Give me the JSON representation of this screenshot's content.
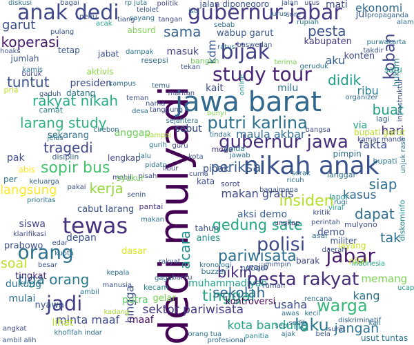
{
  "words": [
    {
      "text": "dedi mulyadi",
      "color": "#440154"
    },
    {
      "text": "jawa barat",
      "color": "#31688e"
    },
    {
      "text": "nikah anak",
      "color": "#3a528b"
    },
    {
      "text": "gubernur jabar",
      "color": "#443983"
    },
    {
      "text": "tewas",
      "color": "#46327e"
    },
    {
      "text": "anak dedi",
      "color": "#3f4889"
    },
    {
      "text": "bijak",
      "color": "#424086"
    },
    {
      "text": "study tour",
      "color": "#482475"
    },
    {
      "text": "orang",
      "color": "#2c718e"
    },
    {
      "text": "jabar",
      "color": "#481a6c"
    },
    {
      "text": "polisi",
      "color": "#3e4a89"
    },
    {
      "text": "pesta rakyat",
      "color": "#472c7a"
    },
    {
      "text": "gubernur jawa",
      "color": "#472f7d"
    },
    {
      "text": "putri karlina",
      "color": "#2c728e"
    },
    {
      "text": "jadi",
      "color": "#424186"
    },
    {
      "text": "warga",
      "color": "#35b779"
    },
    {
      "text": "laku",
      "color": "#2a788e"
    },
    {
      "text": "gedung sate",
      "color": "#22a884"
    },
    {
      "text": "koban",
      "color": "#404387"
    },
    {
      "text": "pariwisata",
      "color": "#2d708e"
    },
    {
      "text": "sopir bus",
      "color": "#46c06f"
    },
    {
      "text": "insiden",
      "color": "#b4de2c"
    },
    {
      "text": "tinggal",
      "color": "#24aa83"
    },
    {
      "text": "bikin",
      "color": "#472d7b"
    },
    {
      "text": "tragedi",
      "color": "#3f4788"
    },
    {
      "text": "periksa",
      "color": "#375b8d"
    },
    {
      "text": "kerja",
      "color": "#95d840"
    },
    {
      "text": "pesta",
      "color": "#3b528b"
    },
    {
      "text": "sama",
      "color": "#34608d"
    },
    {
      "text": "didik",
      "color": "#1f9e89"
    },
    {
      "text": "tuntut",
      "color": "#3b528b"
    },
    {
      "text": "koperasi",
      "color": "#48186a"
    },
    {
      "text": "dapat",
      "color": "#2e6f8e"
    },
    {
      "text": "siap",
      "color": "#2d718e"
    },
    {
      "text": "buat",
      "color": "#20a386"
    },
    {
      "text": "sekolah",
      "color": "#32658e"
    },
    {
      "text": "tiga orang",
      "color": "#2a788e"
    },
    {
      "text": "acara",
      "color": "#20928c"
    },
    {
      "text": "larang study",
      "color": "#2db27d"
    },
    {
      "text": "rakyat nikah",
      "color": "#25ac82"
    },
    {
      "text": "usaha",
      "color": "#3b518b"
    },
    {
      "text": "kota bandung",
      "color": "#21a585"
    },
    {
      "text": "sektor pariwisata",
      "color": "#443b84"
    },
    {
      "text": "makan gratis",
      "color": "#3e4989"
    },
    {
      "text": "minta maaf",
      "color": "#3e4c8a"
    },
    {
      "text": "garut",
      "color": "#3c4f8a"
    },
    {
      "text": "ekonomi",
      "color": "#2f6b8e"
    },
    {
      "text": "kasus",
      "color": "#31678e"
    },
    {
      "text": "langsung",
      "color": "#fde725"
    },
    {
      "text": "jangan",
      "color": "#2c738e"
    },
    {
      "text": "soal",
      "color": "#bddf26"
    },
    {
      "text": "tak",
      "color": "#2e6e8e"
    },
    {
      "text": "kdm",
      "color": "#375a8c"
    },
    {
      "text": "fakta",
      "color": "#3c508b"
    },
    {
      "text": "ribu",
      "color": "#26818e"
    },
    {
      "text": "aku",
      "color": "#355f8d"
    },
    {
      "text": "hari",
      "color": "#472d7b"
    },
    {
      "text": "masuk",
      "color": "#414287"
    },
    {
      "text": "jalan diponegoro",
      "color": "#3b518b"
    },
    {
      "text": "sebut",
      "color": "#3e4c8a"
    },
    {
      "text": "kang",
      "color": "#2d708e"
    },
    {
      "text": "memang",
      "color": "#7ad151"
    },
    {
      "text": "demo",
      "color": "#3c4f8a"
    },
    {
      "text": "muhammadiyah",
      "color": "#1f9e89"
    },
    {
      "text": "aksi demo",
      "color": "#365c8d"
    },
    {
      "text": "kontroversi",
      "color": "#440154"
    },
    {
      "text": "anies",
      "color": "#21918c"
    },
    {
      "text": "sebut",
      "color": "#3b528b"
    },
    {
      "text": "tingkat",
      "color": "#472c7a"
    },
    {
      "text": "siswa",
      "color": "#414487"
    },
    {
      "text": "maula akbar",
      "color": "#2f6c8e"
    },
    {
      "text": "pihak",
      "color": "#3b528b"
    },
    {
      "text": "anggap",
      "color": "#6ece58"
    },
    {
      "text": "kabupaten",
      "color": "#443a83"
    },
    {
      "text": "cabut larang",
      "color": "#3a538b"
    },
    {
      "text": "wabup garut",
      "color": "#38598c"
    },
    {
      "text": "dukung",
      "color": "#2c738e"
    },
    {
      "text": "presiden",
      "color": "#3f4889"
    },
    {
      "text": "hingga",
      "color": "#3c4f8a"
    },
    {
      "text": "putra",
      "color": "#5ec962"
    },
    {
      "text": "konten",
      "color": "#3e4a89"
    },
    {
      "text": "lihat",
      "color": "#b5de2b"
    },
    {
      "text": "kait",
      "color": "#3e4989"
    },
    {
      "text": "milu",
      "color": "#2d708e"
    },
    {
      "text": "via",
      "color": "#20a386"
    },
    {
      "text": "jul",
      "color": "#3b518b"
    },
    {
      "text": "mati",
      "color": "#3f4889"
    },
    {
      "text": "satu",
      "color": "#1fa088"
    },
    {
      "text": "kata",
      "color": "#3e4c8a"
    },
    {
      "text": "gelar",
      "color": "#77d153"
    },
    {
      "text": "wajib",
      "color": "#3d4e8a"
    },
    {
      "text": "nilai",
      "color": "#c2df23"
    },
    {
      "text": "depan",
      "color": "#3b528b"
    },
    {
      "text": "sekarang",
      "color": "#2c728e"
    },
    {
      "text": "mulai",
      "color": "#2e6d8e"
    },
    {
      "text": "pak",
      "color": "#3e4c8a"
    },
    {
      "text": "abis",
      "color": "#fde725"
    },
    {
      "text": "pimpin",
      "color": "#2e6f8e"
    },
    {
      "text": "lagi",
      "color": "#355e8d"
    },
    {
      "text": "tahun",
      "color": "#3b528b"
    },
    {
      "text": "per",
      "color": "#2d718e"
    },
    {
      "text": "bupati garut",
      "color": "#b8de29"
    },
    {
      "text": "lengkap",
      "color": "#3e4989"
    },
    {
      "text": "layang",
      "color": "#c8e020"
    },
    {
      "text": "prabowo",
      "color": "#3b518b"
    },
    {
      "text": "nyawa",
      "color": "#3a548c"
    },
    {
      "text": "bupati",
      "color": "#2a788e"
    },
    {
      "text": "jumlah",
      "color": "#3b528b"
    },
    {
      "text": "aktivis",
      "color": "#8bd646"
    },
    {
      "text": "tetap",
      "color": "#3a548c"
    },
    {
      "text": "datang",
      "color": "#2a768e"
    },
    {
      "text": "absurd",
      "color": "#7cd250"
    },
    {
      "text": "jabat",
      "color": "#3c4f8a"
    },
    {
      "text": "hukum",
      "color": "#2a788e"
    },
    {
      "text": "pria",
      "color": "#bddf26"
    },
    {
      "text": "bangun",
      "color": "#6ccd5a"
    },
    {
      "text": "disiplin",
      "color": "#365d8d"
    },
    {
      "text": "resepsi",
      "color": "#2e6e8e"
    },
    {
      "text": "moga",
      "color": "#472d7b"
    },
    {
      "text": "pantai",
      "color": "#46327e"
    },
    {
      "text": "kecam",
      "color": "#23898e"
    },
    {
      "text": "dasar",
      "color": "#dae319"
    },
    {
      "text": "pribadi",
      "color": "#365c8d"
    },
    {
      "text": "buzzer",
      "color": "#2d718e"
    },
    {
      "text": "sorot",
      "color": "#3f4788"
    },
    {
      "text": "usut tuntas",
      "color": "#2a778e"
    },
    {
      "text": "langgar",
      "color": "#2f6b8e"
    },
    {
      "text": "maaf",
      "color": "#46085c"
    },
    {
      "text": "indonesia",
      "color": "#1fa187"
    },
    {
      "text": "militer",
      "color": "#3b518b"
    },
    {
      "text": "barak",
      "color": "#3f4889"
    },
    {
      "text": "mulyono",
      "color": "#3d4d8a"
    },
    {
      "text": "diskominfo",
      "color": "#23888e"
    },
    {
      "text": "asal",
      "color": "#2e6e8e"
    },
    {
      "text": "camat",
      "color": "#2a788e"
    },
    {
      "text": "gurih",
      "color": "#2c738e"
    },
    {
      "text": "nama",
      "color": "#3a538b"
    },
    {
      "text": "libur",
      "color": "#414287"
    },
    {
      "text": "rp juta",
      "color": "#2c738e"
    },
    {
      "text": "politik",
      "color": "#3e4989"
    },
    {
      "text": "lapor",
      "color": "#21918c"
    },
    {
      "text": "takdir",
      "color": "#3b528b"
    },
    {
      "text": "alam",
      "color": "#2e6f8e"
    },
    {
      "text": "purwakarta",
      "color": "#2a768e"
    },
    {
      "text": "geruduk",
      "color": "#2d718e"
    },
    {
      "text": "terima",
      "color": "#7ad151"
    },
    {
      "text": "urus",
      "color": "#3e4c8a"
    },
    {
      "text": "jalan",
      "color": "#3b528b"
    },
    {
      "text": "sedih",
      "color": "#32648e"
    },
    {
      "text": "viral",
      "color": "#1f9e89"
    },
    {
      "text": "ajak",
      "color": "#2d708e"
    },
    {
      "text": "bela",
      "color": "#3a548c"
    },
    {
      "text": "ucap",
      "color": "#1f9e89"
    },
    {
      "text": "kali",
      "color": "#2c728e"
    },
    {
      "text": "rumah",
      "color": "#3b518b"
    },
    {
      "text": "polda",
      "color": "#2a778e"
    },
    {
      "text": "tanggung",
      "color": "#3e4c8a"
    },
    {
      "text": "panitia",
      "color": "#24868e"
    },
    {
      "text": "mantan",
      "color": "#3e4a89"
    },
    {
      "text": "rencana",
      "color": "#2d708e"
    },
    {
      "text": "kadang",
      "color": "#a5db36"
    },
    {
      "text": "tindak",
      "color": "#2f6b8e"
    },
    {
      "text": "rakyat",
      "color": "#3a548c"
    },
    {
      "text": "desa",
      "color": "#2d718e"
    },
    {
      "text": "teman",
      "color": "#3e4a89"
    },
    {
      "text": "makan",
      "color": "#2c738e"
    },
    {
      "text": "bunyi",
      "color": "#7fd34e"
    },
    {
      "text": "sorak",
      "color": "#2d718e"
    },
    {
      "text": "lalu",
      "color": "#2e6e8e"
    },
    {
      "text": "cuma",
      "color": "#3b528b"
    },
    {
      "text": "kota",
      "color": "#3a538b"
    },
    {
      "text": "ratus",
      "color": "#2c738e"
    },
    {
      "text": "ungkap",
      "color": "#46327e"
    },
    {
      "text": "cirebon",
      "color": "#2e6d8e"
    },
    {
      "text": "sampai",
      "color": "#a2da37"
    },
    {
      "text": "baswedan",
      "color": "#3b528b"
    },
    {
      "text": "sebab",
      "color": "#2d708e"
    },
    {
      "text": "tangan",
      "color": "#3e4989"
    },
    {
      "text": "dampak",
      "color": "#2a778e"
    },
    {
      "text": "pulang",
      "color": "#3a548c"
    },
    {
      "text": "sayang",
      "color": "#2c728e"
    },
    {
      "text": "online",
      "color": "#21918c"
    },
    {
      "text": "kritik",
      "color": "#3e4c8a"
    },
    {
      "text": "keluarga",
      "color": "#35608d"
    },
    {
      "text": "manusia",
      "color": "#3c4f8a"
    },
    {
      "text": "prioritas",
      "color": "#2c738e"
    },
    {
      "text": "klarifikasi",
      "color": "#3e4989"
    },
    {
      "text": "ambil alih",
      "color": "#3b528b"
    },
    {
      "text": "khofifah indar",
      "color": "#2d708e"
    },
    {
      "text": "edar",
      "color": "#3a548c"
    },
    {
      "text": "sepi",
      "color": "#2a778e"
    },
    {
      "text": "perintah",
      "color": "#3b518b"
    },
    {
      "text": "guru",
      "color": "#3e4a89"
    },
    {
      "text": "kecil",
      "color": "#2d718e"
    },
    {
      "text": "profesional",
      "color": "#2e6e8e"
    },
    {
      "text": "surat",
      "color": "#3c4f8a"
    },
    {
      "text": "awas",
      "color": "#2c738e"
    },
    {
      "text": "diskriminatif",
      "color": "#35608d"
    },
    {
      "text": "kronologi",
      "color": "#2d708e"
    },
    {
      "text": "mimpin",
      "color": "#3b528b"
    },
    {
      "text": "daerah",
      "color": "#3a548c"
    },
    {
      "text": "rugi",
      "color": "#2a778e"
    },
    {
      "text": "kamar mandi",
      "color": "#3e4c8a"
    },
    {
      "text": "ricuh",
      "color": "#2c728e"
    },
    {
      "text": "infrastruktur",
      "color": "#3b518b"
    },
    {
      "text": "organizer",
      "color": "#2e6d8e"
    },
    {
      "text": "propaganda",
      "color": "#32648e"
    },
    {
      "text": "unjuk rasa",
      "color": "#2d708e"
    },
    {
      "text": "gagal",
      "color": "#2c738e"
    },
    {
      "text": "bantu",
      "color": "#3e4989"
    },
    {
      "text": "telolet",
      "color": "#3b528b"
    },
    {
      "text": "jurus",
      "color": "#2d718e"
    },
    {
      "text": "sore",
      "color": "#3a548c"
    },
    {
      "text": "rupiah",
      "color": "#2a778e"
    },
    {
      "text": "bangsa",
      "color": "#3e4c8a"
    },
    {
      "text": "hoaks",
      "color": "#3b518b"
    },
    {
      "text": "kamis",
      "color": "#2c728e"
    },
    {
      "text": "kampus",
      "color": "#2e6e8e"
    },
    {
      "text": "bagai",
      "color": "#3c4f8a"
    },
    {
      "text": "diskusi",
      "color": "#2d708e"
    },
    {
      "text": "acak",
      "color": "#1f9e89"
    },
    {
      "text": "tiang",
      "color": "#3b528b"
    },
    {
      "text": "perlu",
      "color": "#3a548c"
    },
    {
      "text": "isu",
      "color": "#2c738e"
    },
    {
      "text": "mobil",
      "color": "#3e4a89"
    },
    {
      "text": "sejahtera",
      "color": "#2d718e"
    },
    {
      "text": "temu",
      "color": "#32648e"
    },
    {
      "text": "tekan",
      "color": "#3b518b"
    },
    {
      "text": "pidato",
      "color": "#2e6d8e"
    },
    {
      "text": "pisah",
      "color": "#3e4c8a"
    },
    {
      "text": "senin",
      "color": "#3a538b"
    },
    {
      "text": "kepala",
      "color": "#2c728e"
    },
    {
      "text": "syukur",
      "color": "#6ece58"
    },
    {
      "text": "jawab",
      "color": "#2d708e"
    },
    {
      "text": "bagaimana",
      "color": "#3b528b"
    },
    {
      "text": "kuota",
      "color": "#2e6e8e"
    },
    {
      "text": "besar",
      "color": "#3a548c"
    },
    {
      "text": "buruk",
      "color": "#3e4989"
    },
    {
      "text": "ambil",
      "color": "#2c738e"
    },
    {
      "text": "gaduh",
      "color": "#3b518b"
    },
    {
      "text": "jelas",
      "color": "#2d718e"
    },
    {
      "text": "pakai",
      "color": "#3c4f8a"
    },
    {
      "text": "orang tua",
      "color": "#2a778e"
    },
    {
      "text": "angkat",
      "color": "#3e4c8a"
    }
  ]
}
